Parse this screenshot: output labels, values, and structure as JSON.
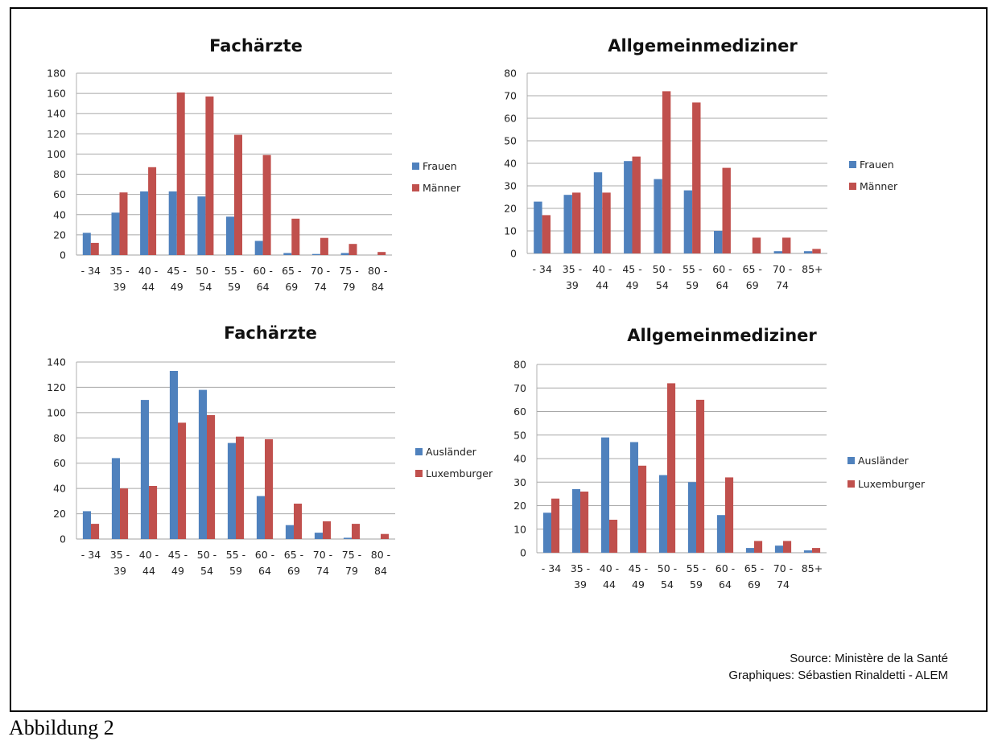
{
  "chart_data": [
    {
      "type": "bar",
      "title": "Fachärzte",
      "xlabel": "",
      "ylabel": "",
      "ylim": [
        0,
        180
      ],
      "yticks": [
        0,
        20,
        40,
        60,
        80,
        100,
        120,
        140,
        160,
        180
      ],
      "grid": true,
      "legend_position": "right",
      "categories": [
        "- 34",
        "35 - 39",
        "40 - 44",
        "45 - 49",
        "50 - 54",
        "55 - 59",
        "60 - 64",
        "65 - 69",
        "70 - 74",
        "75 - 79",
        "80 - 84"
      ],
      "category_lines": [
        [
          "- 34"
        ],
        [
          "35 -",
          "39"
        ],
        [
          "40 -",
          "44"
        ],
        [
          "45 -",
          "49"
        ],
        [
          "50 -",
          "54"
        ],
        [
          "55 -",
          "59"
        ],
        [
          "60 -",
          "64"
        ],
        [
          "65 -",
          "69"
        ],
        [
          "70 -",
          "74"
        ],
        [
          "75 -",
          "79"
        ],
        [
          "80 -",
          "84"
        ]
      ],
      "series": [
        {
          "name": "Frauen",
          "color": "#4f81bd",
          "values": [
            22,
            42,
            63,
            63,
            58,
            38,
            14,
            2,
            1,
            2,
            0
          ]
        },
        {
          "name": "Männer",
          "color": "#c0504d",
          "values": [
            12,
            62,
            87,
            161,
            157,
            119,
            99,
            36,
            17,
            11,
            3
          ]
        }
      ]
    },
    {
      "type": "bar",
      "title": "Allgemeinmediziner",
      "xlabel": "",
      "ylabel": "",
      "ylim": [
        0,
        80
      ],
      "yticks": [
        0,
        10,
        20,
        30,
        40,
        50,
        60,
        70,
        80
      ],
      "grid": true,
      "legend_position": "right",
      "categories": [
        "- 34",
        "35 - 39",
        "40 - 44",
        "45 - 49",
        "50 - 54",
        "55 - 59",
        "60 - 64",
        "65 - 69",
        "70 - 74",
        "85+"
      ],
      "category_lines": [
        [
          "- 34"
        ],
        [
          "35 -",
          "39"
        ],
        [
          "40 -",
          "44"
        ],
        [
          "45 -",
          "49"
        ],
        [
          "50 -",
          "54"
        ],
        [
          "55 -",
          "59"
        ],
        [
          "60 -",
          "64"
        ],
        [
          "65 -",
          "69"
        ],
        [
          "70 -",
          "74"
        ],
        [
          "85+"
        ]
      ],
      "series": [
        {
          "name": "Frauen",
          "color": "#4f81bd",
          "values": [
            23,
            26,
            36,
            41,
            33,
            28,
            10,
            0,
            1,
            1
          ]
        },
        {
          "name": "Männer",
          "color": "#c0504d",
          "values": [
            17,
            27,
            27,
            43,
            72,
            67,
            38,
            7,
            7,
            2
          ]
        }
      ]
    },
    {
      "type": "bar",
      "title": "Fachärzte",
      "xlabel": "",
      "ylabel": "",
      "ylim": [
        0,
        140
      ],
      "yticks": [
        0,
        20,
        40,
        60,
        80,
        100,
        120,
        140
      ],
      "grid": true,
      "legend_position": "right",
      "categories": [
        "- 34",
        "35 - 39",
        "40 - 44",
        "45 - 49",
        "50 - 54",
        "55 - 59",
        "60 - 64",
        "65 - 69",
        "70 - 74",
        "75 - 79",
        "80 - 84"
      ],
      "category_lines": [
        [
          "- 34"
        ],
        [
          "35 -",
          "39"
        ],
        [
          "40 -",
          "44"
        ],
        [
          "45 -",
          "49"
        ],
        [
          "50 -",
          "54"
        ],
        [
          "55 -",
          "59"
        ],
        [
          "60 -",
          "64"
        ],
        [
          "65 -",
          "69"
        ],
        [
          "70 -",
          "74"
        ],
        [
          "75 -",
          "79"
        ],
        [
          "80 -",
          "84"
        ]
      ],
      "series": [
        {
          "name": "Ausländer",
          "color": "#4f81bd",
          "values": [
            22,
            64,
            110,
            133,
            118,
            76,
            34,
            11,
            5,
            1,
            0
          ]
        },
        {
          "name": "Luxemburger",
          "color": "#c0504d",
          "values": [
            12,
            40,
            42,
            92,
            98,
            81,
            79,
            28,
            14,
            12,
            4
          ]
        }
      ]
    },
    {
      "type": "bar",
      "title": "Allgemeinmediziner",
      "xlabel": "",
      "ylabel": "",
      "ylim": [
        0,
        80
      ],
      "yticks": [
        0,
        10,
        20,
        30,
        40,
        50,
        60,
        70,
        80
      ],
      "grid": true,
      "legend_position": "right",
      "categories": [
        "- 34",
        "35 - 39",
        "40 - 44",
        "45 - 49",
        "50 - 54",
        "55 - 59",
        "60 - 64",
        "65 - 69",
        "70 - 74",
        "85+"
      ],
      "category_lines": [
        [
          "- 34"
        ],
        [
          "35 -",
          "39"
        ],
        [
          "40 -",
          "44"
        ],
        [
          "45 -",
          "49"
        ],
        [
          "50 -",
          "54"
        ],
        [
          "55 -",
          "59"
        ],
        [
          "60 -",
          "64"
        ],
        [
          "65 -",
          "69"
        ],
        [
          "70 -",
          "74"
        ],
        [
          "85+"
        ]
      ],
      "series": [
        {
          "name": "Ausländer",
          "color": "#4f81bd",
          "values": [
            17,
            27,
            49,
            47,
            33,
            30,
            16,
            2,
            3,
            1
          ]
        },
        {
          "name": "Luxemburger",
          "color": "#c0504d",
          "values": [
            23,
            26,
            14,
            37,
            72,
            65,
            32,
            5,
            5,
            2
          ]
        }
      ]
    }
  ],
  "source": {
    "line1": "Source: Ministère de la Santé",
    "line2": "Graphiques: Sébastien Rinaldetti - ALEM"
  },
  "caption": "Abbildung 2"
}
